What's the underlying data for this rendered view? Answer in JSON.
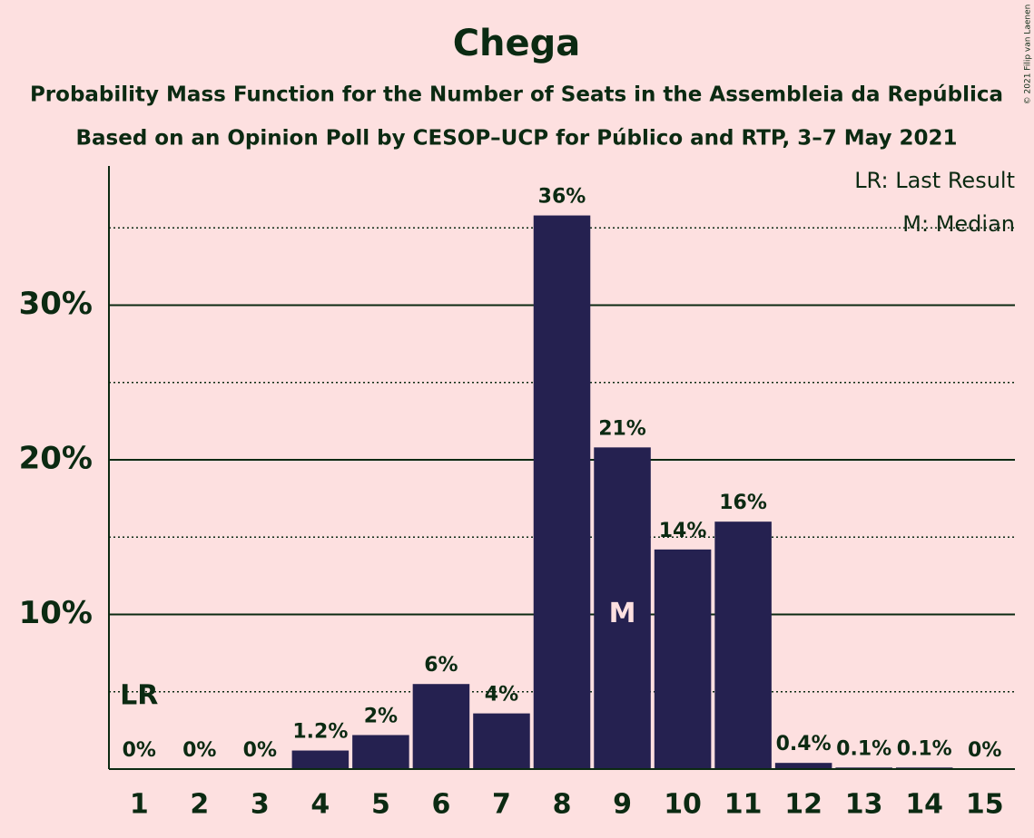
{
  "chart_data": {
    "type": "bar",
    "title": "Chega",
    "subtitle": [
      "Probability Mass Function for the Number of Seats in the Assembleia da República",
      "Based on an Opinion Poll by CESOP–UCP for Público and RTP, 3–7 May 2021"
    ],
    "copyright": "© 2021 Filip van Laenen",
    "categories": [
      "1",
      "2",
      "3",
      "4",
      "5",
      "6",
      "7",
      "8",
      "9",
      "10",
      "11",
      "12",
      "13",
      "14",
      "15"
    ],
    "values": [
      0,
      0,
      0,
      1.2,
      2.2,
      5.5,
      3.6,
      35.8,
      20.8,
      14.2,
      16.0,
      0.4,
      0.1,
      0.1,
      0
    ],
    "value_labels": [
      "0%",
      "0%",
      "0%",
      "1.2%",
      "2%",
      "6%",
      "4%",
      "36%",
      "21%",
      "14%",
      "16%",
      "0.4%",
      "0.1%",
      "0.1%",
      "0%"
    ],
    "color": "#252150",
    "ylim": [
      0,
      39
    ],
    "yticks": [
      {
        "value": 10,
        "label": "10%"
      },
      {
        "value": 20,
        "label": "20%"
      },
      {
        "value": 30,
        "label": "30%"
      }
    ],
    "minor_yticks": [
      5,
      15,
      25,
      35
    ],
    "grid": true,
    "last_result": {
      "category": "1",
      "label": "LR"
    },
    "median": {
      "category": "9",
      "label": "M"
    },
    "legend": [
      "LR: Last Result",
      "M: Median"
    ]
  }
}
